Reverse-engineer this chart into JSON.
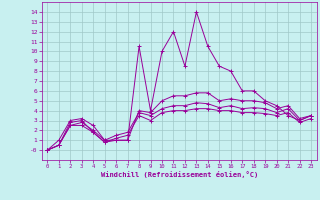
{
  "xlabel": "Windchill (Refroidissement éolien,°C)",
  "xlim": [
    -0.5,
    23.5
  ],
  "ylim": [
    -1,
    15
  ],
  "xticks": [
    0,
    1,
    2,
    3,
    4,
    5,
    6,
    7,
    8,
    9,
    10,
    11,
    12,
    13,
    14,
    15,
    16,
    17,
    18,
    19,
    20,
    21,
    22,
    23
  ],
  "yticks": [
    0,
    1,
    2,
    3,
    4,
    5,
    6,
    7,
    8,
    9,
    10,
    11,
    12,
    13,
    14
  ],
  "background_color": "#c8f0f0",
  "grid_color": "#a0c8c8",
  "line_color": "#990099",
  "series": [
    {
      "x": [
        0,
        1,
        2,
        3,
        4,
        5,
        6,
        7,
        8,
        9,
        10,
        11,
        12,
        13,
        14,
        15,
        16,
        17,
        18,
        19,
        20,
        21,
        22,
        23
      ],
      "y": [
        0,
        1.0,
        3.0,
        3.2,
        2.5,
        1.0,
        1.0,
        1.0,
        10.5,
        4.0,
        10.0,
        12.0,
        8.5,
        14.0,
        10.5,
        8.5,
        8.0,
        6.0,
        6.0,
        5.0,
        4.5,
        3.5,
        3.0,
        3.5
      ]
    },
    {
      "x": [
        0,
        1,
        2,
        3,
        4,
        5,
        6,
        7,
        8,
        9,
        10,
        11,
        12,
        13,
        14,
        15,
        16,
        17,
        18,
        19,
        20,
        21,
        22,
        23
      ],
      "y": [
        0,
        0.5,
        2.8,
        3.0,
        1.8,
        0.8,
        1.0,
        1.0,
        4.0,
        3.8,
        5.0,
        5.5,
        5.5,
        5.8,
        5.8,
        5.0,
        5.2,
        5.0,
        5.0,
        4.8,
        4.2,
        4.5,
        3.2,
        3.5
      ]
    },
    {
      "x": [
        0,
        1,
        2,
        3,
        4,
        5,
        6,
        7,
        8,
        9,
        10,
        11,
        12,
        13,
        14,
        15,
        16,
        17,
        18,
        19,
        20,
        21,
        22,
        23
      ],
      "y": [
        0,
        0.5,
        2.5,
        2.8,
        2.0,
        1.0,
        1.5,
        1.8,
        3.8,
        3.5,
        4.2,
        4.5,
        4.5,
        4.8,
        4.7,
        4.3,
        4.5,
        4.2,
        4.3,
        4.2,
        3.8,
        4.2,
        3.0,
        3.5
      ]
    },
    {
      "x": [
        0,
        1,
        2,
        3,
        4,
        5,
        6,
        7,
        8,
        9,
        10,
        11,
        12,
        13,
        14,
        15,
        16,
        17,
        18,
        19,
        20,
        21,
        22,
        23
      ],
      "y": [
        0,
        0.5,
        2.5,
        2.5,
        1.8,
        0.8,
        1.2,
        1.5,
        3.5,
        3.0,
        3.8,
        4.0,
        4.0,
        4.2,
        4.2,
        4.0,
        4.0,
        3.8,
        3.8,
        3.7,
        3.5,
        3.8,
        2.8,
        3.2
      ]
    }
  ]
}
